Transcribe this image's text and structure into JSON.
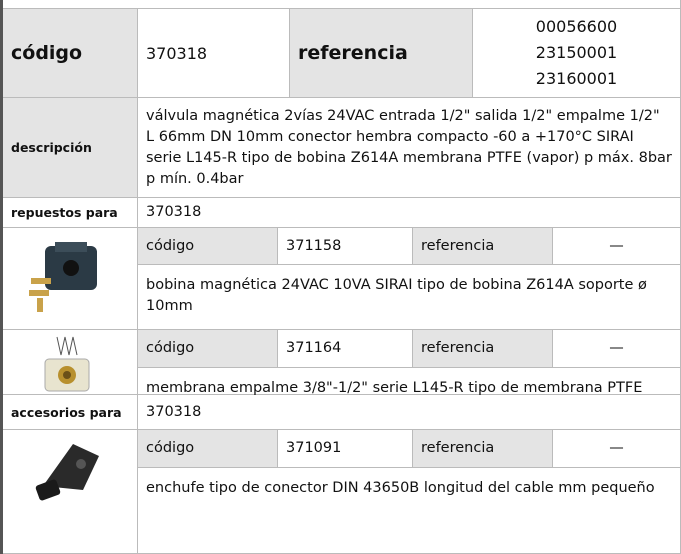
{
  "header": {
    "code_label": "código",
    "code": "370318",
    "reference_label": "referencia",
    "references": [
      "00056600",
      "23150001",
      "23160001"
    ]
  },
  "description": {
    "label": "descripción",
    "text": "válvula magnética  2vías 24VAC entrada 1/2\" salida 1/2\" empalme 1/2\" L 66mm DN 10mm conector hembra compacto -60 a +170°C SIRAI serie L145-R tipo de bobina Z614A membrana PTFE (vapor) p máx. 8bar p mín. 0.4bar"
  },
  "sections": [
    {
      "label": "repuestos para",
      "for": "370318",
      "items": [
        {
          "code_label": "código",
          "code": "371158",
          "reference_label": "referencia",
          "reference": "—",
          "description": "bobina magnética  24VAC 10VA SIRAI tipo de bobina Z614A soporte ø 10mm"
        },
        {
          "code_label": "código",
          "code": "371164",
          "reference_label": "referencia",
          "reference": "—",
          "description": "membrana  empalme 3/8\"-1/2\" serie L145-R tipo de membrana PTFE"
        }
      ]
    },
    {
      "label": "accesorios para",
      "for": "370318",
      "items": [
        {
          "code_label": "código",
          "code": "371091",
          "reference_label": "referencia",
          "reference": "—",
          "description": "enchufe  tipo de conector DIN 43650B longitud del cable mm pequeño"
        }
      ]
    }
  ]
}
